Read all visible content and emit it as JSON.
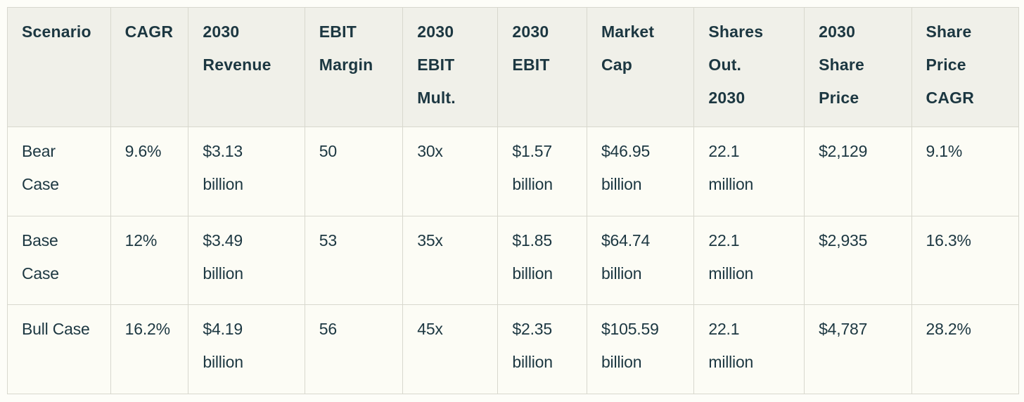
{
  "colors": {
    "page_background": "#FDFDF8",
    "header_background": "#F0F0E9",
    "cell_background": "#FCFCF5",
    "border": "#D8D8CE",
    "text": "#1C3741"
  },
  "chart_data": {
    "type": "table",
    "columns": [
      "Scenario",
      "CAGR",
      "2030\nRevenue",
      "EBIT\nMargin",
      "2030\nEBIT\nMult.",
      "2030\nEBIT",
      "Market\nCap",
      "Shares\nOut.\n2030",
      "2030\nShare\nPrice",
      "Share\nPrice\nCAGR"
    ],
    "rows": [
      [
        "Bear\nCase",
        "9.6%",
        "$3.13\nbillion",
        "50",
        "30x",
        "$1.57\nbillion",
        "$46.95\nbillion",
        "22.1\nmillion",
        "$2,129",
        "9.1%"
      ],
      [
        "Base\nCase",
        "12%",
        "$3.49\nbillion",
        "53",
        "35x",
        "$1.85\nbillion",
        "$64.74\nbillion",
        "22.1\nmillion",
        "$2,935",
        "16.3%"
      ],
      [
        "Bull Case",
        "16.2%",
        "$4.19\nbillion",
        "56",
        "45x",
        "$2.35\nbillion",
        "$105.59\nbillion",
        "22.1\nmillion",
        "$4,787",
        "28.2%"
      ]
    ]
  }
}
